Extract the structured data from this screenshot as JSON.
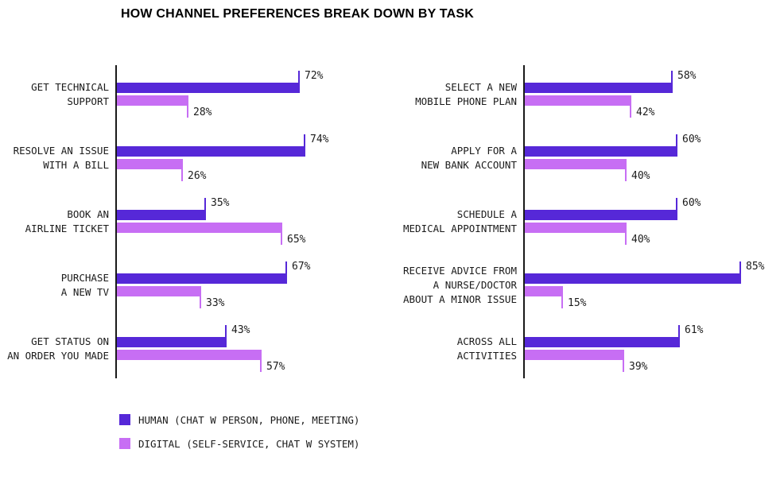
{
  "title": "HOW CHANNEL PREFERENCES BREAK DOWN BY TASK",
  "chart_data": {
    "type": "bar",
    "orientation": "horizontal",
    "unit": "percent",
    "xlim": [
      0,
      100
    ],
    "value_suffix": "%",
    "grid": false,
    "legend_position": "bottom-left",
    "colors": {
      "human": "#5628d8",
      "digital": "#c76ef4",
      "axis": "#1a1a1a",
      "text": "#1b1b1b"
    },
    "series_names": [
      "HUMAN (CHAT W PERSON, PHONE, MEETING)",
      "DIGITAL (SELF-SERVICE, CHAT W SYSTEM)"
    ],
    "panels": [
      {
        "name": "left",
        "groups": [
          {
            "label_lines": [
              "GET TECHNICAL",
              "SUPPORT"
            ],
            "human": 72,
            "digital": 28
          },
          {
            "label_lines": [
              "RESOLVE AN ISSUE",
              "WITH A BILL"
            ],
            "human": 74,
            "digital": 26
          },
          {
            "label_lines": [
              "BOOK AN",
              "AIRLINE TICKET"
            ],
            "human": 35,
            "digital": 65
          },
          {
            "label_lines": [
              "PURCHASE",
              "A NEW TV"
            ],
            "human": 67,
            "digital": 33
          },
          {
            "label_lines": [
              "GET STATUS ON",
              "AN ORDER YOU MADE"
            ],
            "human": 43,
            "digital": 57
          }
        ]
      },
      {
        "name": "right",
        "groups": [
          {
            "label_lines": [
              "SELECT A NEW",
              "MOBILE PHONE PLAN"
            ],
            "human": 58,
            "digital": 42
          },
          {
            "label_lines": [
              "APPLY FOR A",
              "NEW BANK ACCOUNT"
            ],
            "human": 60,
            "digital": 40
          },
          {
            "label_lines": [
              "SCHEDULE A",
              "MEDICAL APPOINTMENT"
            ],
            "human": 60,
            "digital": 40
          },
          {
            "label_lines": [
              "RECEIVE ADVICE FROM",
              "A NURSE/DOCTOR",
              "ABOUT A MINOR ISSUE"
            ],
            "human": 85,
            "digital": 15
          },
          {
            "label_lines": [
              "ACROSS ALL",
              "ACTIVITIES"
            ],
            "human": 61,
            "digital": 39
          }
        ]
      }
    ]
  },
  "legend": [
    {
      "key": "human",
      "label": "HUMAN (CHAT W PERSON, PHONE, MEETING)"
    },
    {
      "key": "digital",
      "label": "DIGITAL (SELF-SERVICE, CHAT W SYSTEM)"
    }
  ]
}
